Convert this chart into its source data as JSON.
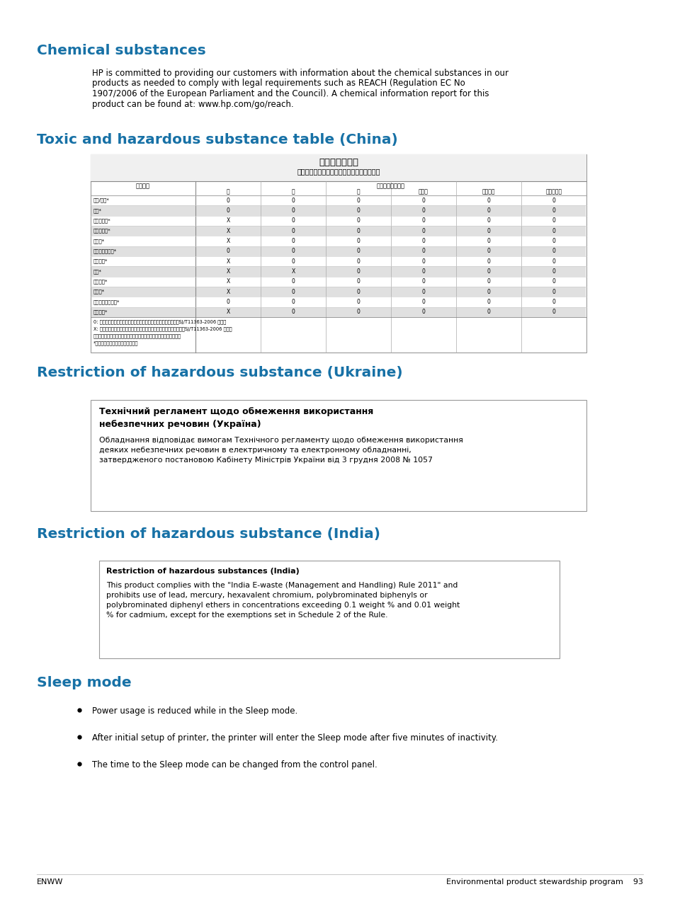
{
  "bg_color": "#ffffff",
  "heading_color": "#1771a6",
  "text_color": "#000000",
  "link_color": "#1771a6",
  "section1_heading": "Chemical substances",
  "section2_heading": "Toxic and hazardous substance table (China)",
  "section3_heading": "Restriction of hazardous substance (Ukraine)",
  "ukraine_bold": "Технічний регламент щодо обмеження використання\nнебезпечних речовин (Україна)",
  "ukraine_normal": "Обладнання відповідає вимогам Технічного регламенту щодо обмеження використання\nдеяких небезпечних речовин в електричному та електронному обладнанні,\nзатвердженого постановою Кабінету Міністрів України від 3 грудня 2008 № 1057",
  "section4_heading": "Restriction of hazardous substance (India)",
  "india_bold": "Restriction of hazardous substances (India)",
  "india_normal": "This product complies with the \"India E-waste (Management and Handling) Rule 2011\" and\nprohibits use of lead, mercury, hexavalent chromium, polybrominated biphenyls or\npolybrominated diphenyl ethers in concentrations exceeding 0.1 weight % and 0.01 weight\n% for cadmium, except for the exemptions set in Schedule 2 of the Rule.",
  "section5_heading": "Sleep mode",
  "bullet1": "Power usage is reduced while in the Sleep mode.",
  "bullet2": "After initial setup of printer, the printer will enter the Sleep mode after five minutes of inactivity.",
  "bullet3": "The time to the Sleep mode can be changed from the control panel.",
  "footer_left": "ENWW",
  "footer_right": "Environmental product stewardship program    93",
  "para1_line1": "HP is committed to providing our customers with information about the chemical substances in our",
  "para1_line2": "products as needed to comply with legal requirements such as REACH (Regulation EC No",
  "para1_line3": "1907/2006 of the European Parliament and the Council). A chemical information report for this",
  "para1_line4": "product can be found at: www.hp.com/go/reach."
}
